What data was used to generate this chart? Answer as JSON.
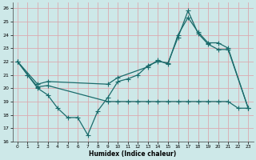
{
  "xlabel": "Humidex (Indice chaleur)",
  "xlim": [
    -0.5,
    23.5
  ],
  "ylim": [
    16,
    26.4
  ],
  "yticks": [
    16,
    17,
    18,
    19,
    20,
    21,
    22,
    23,
    24,
    25,
    26
  ],
  "xticks": [
    0,
    1,
    2,
    3,
    4,
    5,
    6,
    7,
    8,
    9,
    10,
    11,
    12,
    13,
    14,
    15,
    16,
    17,
    18,
    19,
    20,
    21,
    22,
    23
  ],
  "background_color": "#cde8e8",
  "grid_color": "#dbaab0",
  "line_color": "#1a6b6b",
  "curve1_x": [
    0,
    1,
    2,
    3,
    4,
    5,
    6,
    7,
    8,
    9,
    10,
    11,
    12,
    13,
    14,
    15,
    16,
    17,
    18,
    19,
    20,
    21,
    23
  ],
  "curve1_y": [
    22.0,
    21.0,
    20.0,
    19.5,
    18.5,
    17.8,
    17.8,
    16.5,
    18.3,
    19.3,
    20.5,
    20.7,
    21.0,
    21.7,
    22.0,
    21.9,
    23.8,
    25.8,
    24.1,
    23.3,
    22.9,
    22.9,
    18.5
  ],
  "curve2_x": [
    0,
    1,
    2,
    3,
    9,
    10,
    11,
    12,
    13,
    14,
    15,
    16,
    17,
    18,
    19,
    20,
    21,
    22,
    23
  ],
  "curve2_y": [
    22.0,
    21.0,
    20.1,
    20.2,
    19.0,
    19.0,
    19.0,
    19.0,
    19.0,
    19.0,
    19.0,
    19.0,
    19.0,
    19.0,
    19.0,
    19.0,
    19.0,
    18.5,
    18.5
  ],
  "curve3_x": [
    0,
    2,
    3,
    9,
    10,
    13,
    14,
    15,
    16,
    17,
    18,
    19,
    20,
    21,
    23
  ],
  "curve3_y": [
    22.0,
    20.3,
    20.5,
    20.3,
    20.8,
    21.6,
    22.1,
    21.8,
    24.0,
    25.3,
    24.2,
    23.4,
    23.4,
    23.0,
    18.5
  ]
}
